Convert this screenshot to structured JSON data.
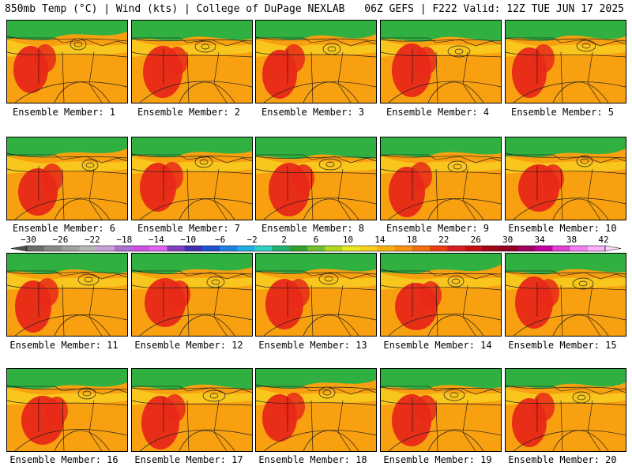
{
  "header": {
    "title_left": "850mb Temp (°C) | Wind (kts) | College of DuPage NEXLAB",
    "title_right": "06Z GEFS | F222 Valid: 12Z TUE JUN 17 2025"
  },
  "members": [
    {
      "label": "Ensemble Member: 1"
    },
    {
      "label": "Ensemble Member: 2"
    },
    {
      "label": "Ensemble Member: 3"
    },
    {
      "label": "Ensemble Member: 4"
    },
    {
      "label": "Ensemble Member: 5"
    },
    {
      "label": "Ensemble Member: 6"
    },
    {
      "label": "Ensemble Member: 7"
    },
    {
      "label": "Ensemble Member: 8"
    },
    {
      "label": "Ensemble Member: 9"
    },
    {
      "label": "Ensemble Member: 10"
    },
    {
      "label": "Ensemble Member: 11"
    },
    {
      "label": "Ensemble Member: 12"
    },
    {
      "label": "Ensemble Member: 13"
    },
    {
      "label": "Ensemble Member: 14"
    },
    {
      "label": "Ensemble Member: 15"
    },
    {
      "label": "Ensemble Member: 16"
    },
    {
      "label": "Ensemble Member: 17"
    },
    {
      "label": "Ensemble Member: 18"
    },
    {
      "label": "Ensemble Member: 19"
    },
    {
      "label": "Ensemble Member: 20"
    }
  ],
  "colorbar": {
    "labels": [
      "−30",
      "−26",
      "−22",
      "−18",
      "−14",
      "−10",
      "−6",
      "−2",
      "2",
      "6",
      "10",
      "14",
      "18",
      "22",
      "26",
      "30",
      "34",
      "38",
      "42"
    ],
    "colors": [
      "#6e6e6e",
      "#8a8a8a",
      "#a0a0a0",
      "#b6b6b6",
      "#c8a0d8",
      "#b070d0",
      "#d050e0",
      "#e060f0",
      "#8040c0",
      "#4030b0",
      "#2050d0",
      "#2080e0",
      "#20b0e0",
      "#30d0c0",
      "#20b070",
      "#30a030",
      "#70c030",
      "#b0d820",
      "#e8e820",
      "#f8d020",
      "#f8b010",
      "#f89010",
      "#f07010",
      "#e84010",
      "#d82020",
      "#c01010",
      "#a00818",
      "#900020",
      "#a00060",
      "#c000a0",
      "#e040d0",
      "#f080f0",
      "#f8b0f8"
    ]
  },
  "colors": {
    "cold": "#30b040",
    "warm": "#f8a010",
    "hot": "#e82818",
    "mid": "#f8d020"
  }
}
